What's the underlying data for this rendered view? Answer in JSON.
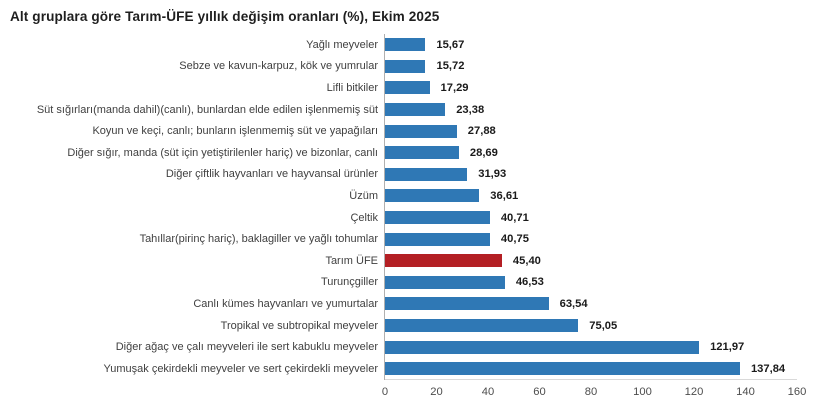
{
  "chart_data": {
    "type": "bar",
    "orientation": "horizontal",
    "title": "Alt gruplara göre Tarım-ÜFE yıllık değişim oranları (%), Ekim 2025",
    "categories": [
      "Yağlı meyveler",
      "Sebze ve kavun-karpuz, kök ve yumrular",
      "Lifli bitkiler",
      "Süt sığırları(manda dahil)(canlı), bunlardan elde edilen işlenmemiş süt",
      "Koyun ve keçi, canlı; bunların işlenmemiş süt ve yapağıları",
      "Diğer sığır, manda (süt için yetiştirilenler hariç) ve bizonlar, canlı",
      "Diğer çiftlik hayvanları ve hayvansal ürünler",
      "Üzüm",
      "Çeltik",
      "Tahıllar(pirinç hariç), baklagiller ve yağlı tohumlar",
      "Tarım ÜFE",
      "Turunçgiller",
      "Canlı kümes hayvanları ve yumurtalar",
      "Tropikal ve subtropikal meyveler",
      "Diğer ağaç ve çalı meyveleri ile sert kabuklu meyveler",
      "Yumuşak çekirdekli meyveler ve sert çekirdekli meyveler"
    ],
    "values": [
      15.67,
      15.72,
      17.29,
      23.38,
      27.88,
      28.69,
      31.93,
      36.61,
      40.71,
      40.75,
      45.4,
      46.53,
      63.54,
      75.05,
      121.97,
      137.84
    ],
    "value_labels": [
      "15,67",
      "15,72",
      "17,29",
      "23,38",
      "27,88",
      "28,69",
      "31,93",
      "36,61",
      "40,71",
      "40,75",
      "45,40",
      "46,53",
      "63,54",
      "75,05",
      "121,97",
      "137,84"
    ],
    "highlight": {
      "index": 10,
      "label": "Tarım ÜFE",
      "color": "#b41f24"
    },
    "bar_color": "#2f78b5",
    "xlim": [
      0,
      160
    ],
    "x_ticks": [
      0,
      20,
      40,
      60,
      80,
      100,
      120,
      140,
      160
    ],
    "grid": false,
    "legend": "none",
    "value_labels_shown": true
  },
  "colors": {
    "background": "#ffffff",
    "title_text": "#1f1f1f",
    "category_text": "#404040",
    "value_text": "#1a1a1a",
    "tick_text": "#4d4d4d",
    "axis_line": "#b0b0b0",
    "baseline": "#d9d9d9"
  }
}
